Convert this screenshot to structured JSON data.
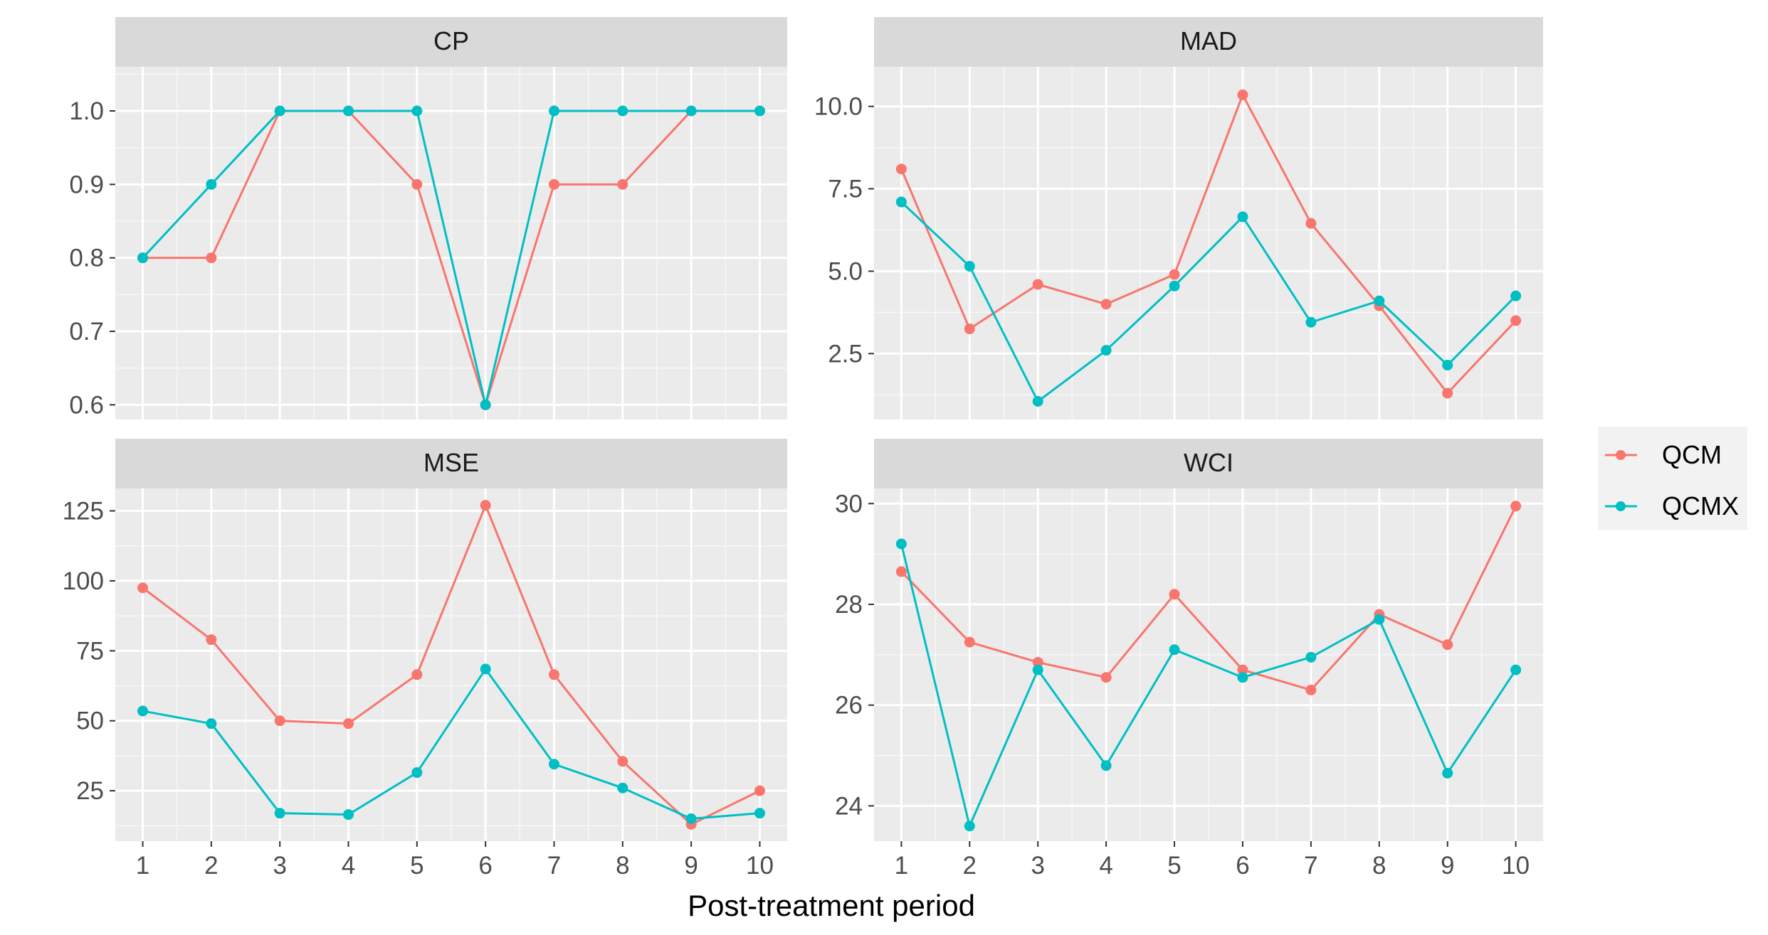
{
  "x_axis_title": "Post-treatment period",
  "legend": {
    "entries": [
      {
        "label": "QCM",
        "color": "#F8766D"
      },
      {
        "label": "QCMX",
        "color": "#00BFC4"
      }
    ]
  },
  "chart_data": [
    {
      "type": "line",
      "title": "CP",
      "x": [
        1,
        2,
        3,
        4,
        5,
        6,
        7,
        8,
        9,
        10
      ],
      "ylim": [
        0.58,
        1.06
      ],
      "yticks": [
        "0.6",
        "0.7",
        "0.8",
        "0.9",
        "1.0"
      ],
      "series": [
        {
          "name": "QCM",
          "values": [
            0.8,
            0.8,
            1.0,
            1.0,
            0.9,
            0.6,
            0.9,
            0.9,
            1.0,
            1.0
          ]
        },
        {
          "name": "QCMX",
          "values": [
            0.8,
            0.9,
            1.0,
            1.0,
            1.0,
            0.6,
            1.0,
            1.0,
            1.0,
            1.0
          ]
        }
      ]
    },
    {
      "type": "line",
      "title": "MAD",
      "x": [
        1,
        2,
        3,
        4,
        5,
        6,
        7,
        8,
        9,
        10
      ],
      "ylim": [
        0.5,
        11.2
      ],
      "yticks": [
        "2.5",
        "5.0",
        "7.5",
        "10.0"
      ],
      "series": [
        {
          "name": "QCM",
          "values": [
            8.1,
            3.25,
            4.6,
            4.0,
            4.9,
            10.35,
            6.45,
            3.95,
            1.3,
            3.5
          ]
        },
        {
          "name": "QCMX",
          "values": [
            7.1,
            5.15,
            1.05,
            2.6,
            4.55,
            6.65,
            3.45,
            4.1,
            2.15,
            4.25
          ]
        }
      ]
    },
    {
      "type": "line",
      "title": "MSE",
      "x": [
        1,
        2,
        3,
        4,
        5,
        6,
        7,
        8,
        9,
        10
      ],
      "ylim": [
        7,
        133
      ],
      "yticks": [
        "25",
        "50",
        "75",
        "100",
        "125"
      ],
      "series": [
        {
          "name": "QCM",
          "values": [
            97.5,
            79,
            50,
            49,
            66.5,
            127,
            66.5,
            35.5,
            13,
            25
          ]
        },
        {
          "name": "QCMX",
          "values": [
            53.5,
            49,
            17,
            16.5,
            31.5,
            68.5,
            34.5,
            26,
            15,
            17
          ]
        }
      ]
    },
    {
      "type": "line",
      "title": "WCI",
      "x": [
        1,
        2,
        3,
        4,
        5,
        6,
        7,
        8,
        9,
        10
      ],
      "ylim": [
        23.3,
        30.3
      ],
      "yticks": [
        "24",
        "26",
        "28",
        "30"
      ],
      "series": [
        {
          "name": "QCM",
          "values": [
            28.65,
            27.25,
            26.85,
            26.55,
            28.2,
            26.7,
            26.3,
            27.8,
            27.2,
            29.95
          ]
        },
        {
          "name": "QCMX",
          "values": [
            29.2,
            23.6,
            26.7,
            24.8,
            27.1,
            26.55,
            26.95,
            27.7,
            24.65,
            26.7
          ]
        }
      ]
    }
  ]
}
